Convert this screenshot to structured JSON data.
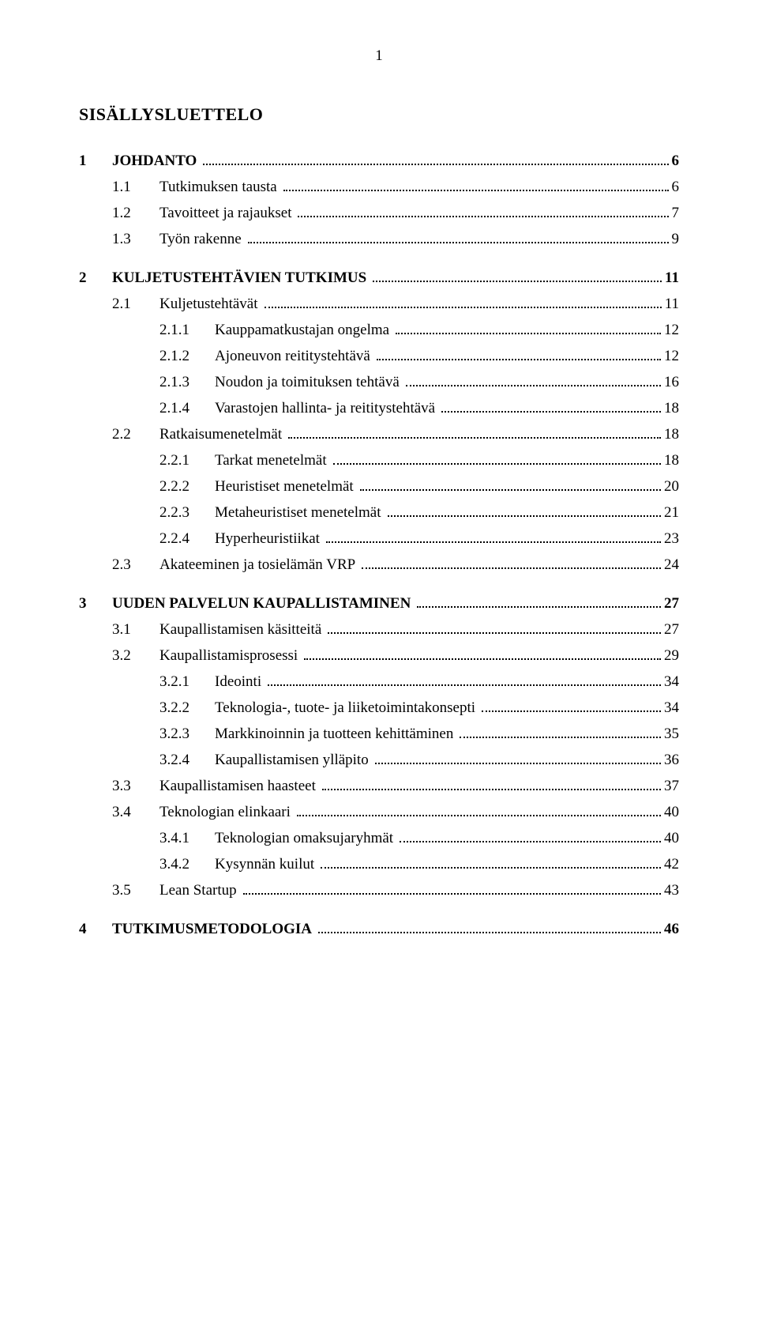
{
  "pageNumber": "1",
  "title": "SISÄLLYSLUETTELO",
  "toc": [
    {
      "level": 1,
      "bold": true,
      "num": "1",
      "label": "JOHDANTO",
      "page": "6",
      "gapBefore": false
    },
    {
      "level": 2,
      "bold": false,
      "num": "1.1",
      "label": "Tutkimuksen tausta",
      "page": "6",
      "gapBefore": false
    },
    {
      "level": 2,
      "bold": false,
      "num": "1.2",
      "label": "Tavoitteet ja rajaukset",
      "page": "7",
      "gapBefore": false
    },
    {
      "level": 2,
      "bold": false,
      "num": "1.3",
      "label": "Työn rakenne",
      "page": "9",
      "gapBefore": false
    },
    {
      "level": 1,
      "bold": true,
      "num": "2",
      "label": "KULJETUSTEHTÄVIEN TUTKIMUS",
      "page": "11",
      "gapBefore": true
    },
    {
      "level": 2,
      "bold": false,
      "num": "2.1",
      "label": "Kuljetustehtävät",
      "page": "11",
      "gapBefore": false
    },
    {
      "level": 3,
      "bold": false,
      "num": "2.1.1",
      "label": "Kauppamatkustajan ongelma",
      "page": "12",
      "gapBefore": false
    },
    {
      "level": 3,
      "bold": false,
      "num": "2.1.2",
      "label": "Ajoneuvon reititystehtävä",
      "page": "12",
      "gapBefore": false
    },
    {
      "level": 3,
      "bold": false,
      "num": "2.1.3",
      "label": "Noudon ja toimituksen tehtävä",
      "page": "16",
      "gapBefore": false
    },
    {
      "level": 3,
      "bold": false,
      "num": "2.1.4",
      "label": "Varastojen hallinta- ja reititystehtävä",
      "page": "18",
      "gapBefore": false
    },
    {
      "level": 2,
      "bold": false,
      "num": "2.2",
      "label": "Ratkaisumenetelmät",
      "page": "18",
      "gapBefore": false
    },
    {
      "level": 3,
      "bold": false,
      "num": "2.2.1",
      "label": "Tarkat menetelmät",
      "page": "18",
      "gapBefore": false
    },
    {
      "level": 3,
      "bold": false,
      "num": "2.2.2",
      "label": "Heuristiset menetelmät",
      "page": "20",
      "gapBefore": false
    },
    {
      "level": 3,
      "bold": false,
      "num": "2.2.3",
      "label": "Metaheuristiset menetelmät",
      "page": "21",
      "gapBefore": false
    },
    {
      "level": 3,
      "bold": false,
      "num": "2.2.4",
      "label": "Hyperheuristiikat",
      "page": "23",
      "gapBefore": false
    },
    {
      "level": 2,
      "bold": false,
      "num": "2.3",
      "label": "Akateeminen ja tosielämän VRP",
      "page": "24",
      "gapBefore": false
    },
    {
      "level": 1,
      "bold": true,
      "num": "3",
      "label": "UUDEN PALVELUN KAUPALLISTAMINEN",
      "page": "27",
      "gapBefore": true
    },
    {
      "level": 2,
      "bold": false,
      "num": "3.1",
      "label": "Kaupallistamisen käsitteitä",
      "page": "27",
      "gapBefore": false
    },
    {
      "level": 2,
      "bold": false,
      "num": "3.2",
      "label": "Kaupallistamisprosessi",
      "page": "29",
      "gapBefore": false
    },
    {
      "level": 3,
      "bold": false,
      "num": "3.2.1",
      "label": "Ideointi",
      "page": "34",
      "gapBefore": false
    },
    {
      "level": 3,
      "bold": false,
      "num": "3.2.2",
      "label": "Teknologia-, tuote- ja liiketoimintakonsepti",
      "page": "34",
      "gapBefore": false
    },
    {
      "level": 3,
      "bold": false,
      "num": "3.2.3",
      "label": "Markkinoinnin ja tuotteen kehittäminen",
      "page": "35",
      "gapBefore": false
    },
    {
      "level": 3,
      "bold": false,
      "num": "3.2.4",
      "label": "Kaupallistamisen ylläpito",
      "page": "36",
      "gapBefore": false
    },
    {
      "level": 2,
      "bold": false,
      "num": "3.3",
      "label": "Kaupallistamisen haasteet",
      "page": "37",
      "gapBefore": false
    },
    {
      "level": 2,
      "bold": false,
      "num": "3.4",
      "label": "Teknologian elinkaari",
      "page": "40",
      "gapBefore": false
    },
    {
      "level": 3,
      "bold": false,
      "num": "3.4.1",
      "label": "Teknologian omaksujaryhmät",
      "page": "40",
      "gapBefore": false
    },
    {
      "level": 3,
      "bold": false,
      "num": "3.4.2",
      "label": "Kysynnän kuilut",
      "page": "42",
      "gapBefore": false
    },
    {
      "level": 2,
      "bold": false,
      "num": "3.5",
      "label": "Lean Startup",
      "page": "43",
      "gapBefore": false
    },
    {
      "level": 1,
      "bold": true,
      "num": "4",
      "label": "TUTKIMUSMETODOLOGIA",
      "page": "46",
      "gapBefore": true
    }
  ]
}
